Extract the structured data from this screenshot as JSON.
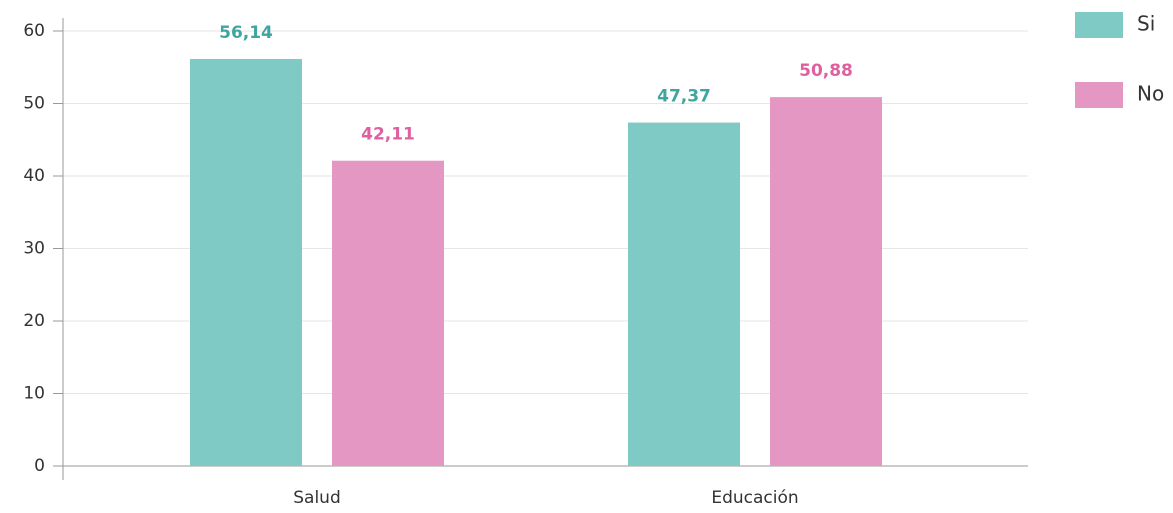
{
  "chart_data": {
    "type": "bar",
    "categories": [
      "Salud",
      "Educación"
    ],
    "series": [
      {
        "name": "Si",
        "color": "#7fcac5",
        "label_color": "#3ea59f",
        "values": [
          56.14,
          47.37
        ],
        "value_labels": [
          "56,14",
          "47,37"
        ]
      },
      {
        "name": "No",
        "color": "#e597c3",
        "label_color": "#e0609f",
        "values": [
          42.11,
          50.88
        ],
        "value_labels": [
          "42,11",
          "50,88"
        ]
      }
    ],
    "ylim": [
      0,
      60
    ],
    "yticks": [
      0,
      10,
      20,
      30,
      40,
      50,
      60
    ],
    "grid": true,
    "legend": "top-right"
  }
}
